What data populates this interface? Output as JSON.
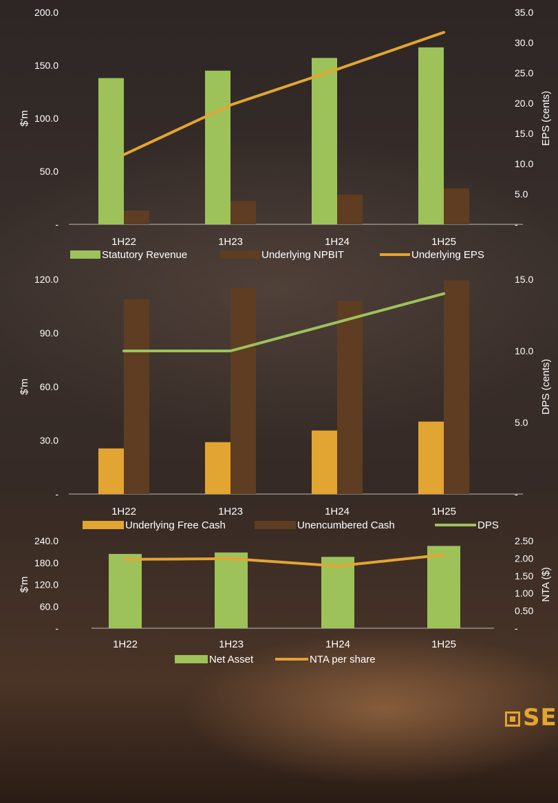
{
  "logo": {
    "text": "SE"
  },
  "colors": {
    "green": "#9dc25a",
    "brown": "#5e3d22",
    "orange": "#e3a532",
    "dps_line": "#9dc25a",
    "axis_text": "#ffffff"
  },
  "chart_data": [
    {
      "type": "bar",
      "categories": [
        "1H22",
        "1H23",
        "1H24",
        "1H25"
      ],
      "series": [
        {
          "name": "Statutory Revenue",
          "kind": "bar",
          "axis": "left",
          "color": "#9dc25a",
          "values": [
            138,
            145,
            157,
            167
          ]
        },
        {
          "name": "Underlying NPBIT",
          "kind": "bar",
          "axis": "left",
          "color": "#5e3d22",
          "values": [
            13,
            22,
            28,
            34
          ]
        },
        {
          "name": "Underlying EPS",
          "kind": "line",
          "axis": "right",
          "color": "#e3a532",
          "values": [
            11.5,
            19.7,
            25.6,
            31.7
          ]
        }
      ],
      "left_ticks": [
        "200.0",
        "150.0",
        "100.0",
        "50.0",
        "-"
      ],
      "right_ticks": [
        "35.0",
        "30.0",
        "25.0",
        "20.0",
        "15.0",
        "10.0",
        "5.0",
        "-"
      ],
      "ylabel": "$'m",
      "y2label": "EPS (cents)",
      "ylim": [
        0,
        200
      ],
      "y2lim": [
        0,
        35
      ]
    },
    {
      "type": "bar",
      "categories": [
        "1H22",
        "1H23",
        "1H24",
        "1H25"
      ],
      "series": [
        {
          "name": "Underlying Free Cash",
          "kind": "bar",
          "axis": "left",
          "color": "#e3a532",
          "values": [
            25.5,
            29,
            35.5,
            40.5
          ]
        },
        {
          "name": "Unencumbered Cash",
          "kind": "bar",
          "axis": "left",
          "color": "#5e3d22",
          "values": [
            109,
            115,
            108,
            119.5
          ]
        },
        {
          "name": "DPS",
          "kind": "line",
          "axis": "right",
          "color": "#9dc25a",
          "values": [
            10.0,
            10.0,
            12.0,
            14.0
          ]
        }
      ],
      "left_ticks": [
        "120.0",
        "90.0",
        "60.0",
        "30.0",
        "-"
      ],
      "right_ticks": [
        "15.0",
        "10.0",
        "5.0",
        "-"
      ],
      "ylabel": "$'m",
      "y2label": "DPS (cents)",
      "ylim": [
        0,
        120
      ],
      "y2lim": [
        0,
        15
      ]
    },
    {
      "type": "bar",
      "categories": [
        "1H22",
        "1H23",
        "1H24",
        "1H25"
      ],
      "series": [
        {
          "name": "Net Asset",
          "kind": "bar",
          "axis": "left",
          "color": "#9dc25a",
          "values": [
            204,
            208,
            196,
            226
          ]
        },
        {
          "name": "NTA per share",
          "kind": "line",
          "axis": "right",
          "color": "#e3a532",
          "values": [
            1.97,
            1.99,
            1.78,
            2.1
          ]
        }
      ],
      "left_ticks": [
        "240.0",
        "180.0",
        "120.0",
        "60.0",
        "-"
      ],
      "right_ticks": [
        "2.50",
        "2.00",
        "1.50",
        "1.00",
        "0.50",
        "-"
      ],
      "ylabel": "$'m",
      "y2label": "NTA ($)",
      "ylim": [
        0,
        240
      ],
      "y2lim": [
        0,
        2.5
      ]
    }
  ]
}
